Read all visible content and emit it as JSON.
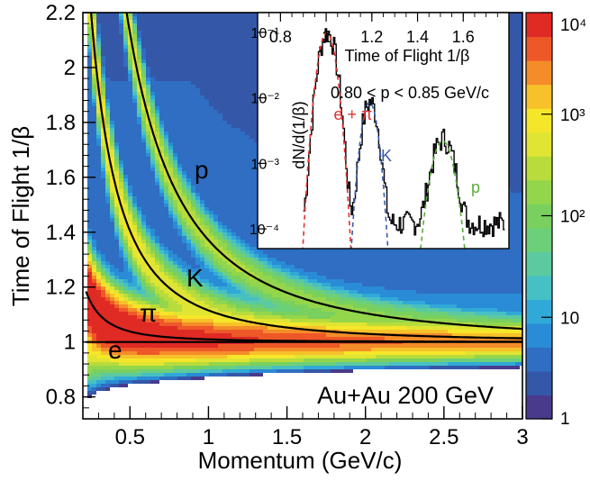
{
  "chart_data": [
    {
      "type": "heatmap",
      "title": "Au+Au 200 GeV",
      "xlabel": "Momentum (GeV/c)",
      "ylabel": "Time of Flight 1/β",
      "xlim": [
        0.2,
        3.0
      ],
      "ylim": [
        0.72,
        2.2
      ],
      "x_ticks": [
        "0.5",
        "1",
        "1.5",
        "2",
        "2.5",
        "3"
      ],
      "y_ticks": [
        "0.8",
        "1",
        "1.2",
        "1.4",
        "1.6",
        "1.8",
        "2",
        "2.2"
      ],
      "colorbar": {
        "scale": "log",
        "range": [
          1,
          10000
        ],
        "tick_labels": [
          "1",
          "10",
          "10²",
          "10³",
          "10⁴"
        ],
        "colors": [
          "#4a3a8c",
          "#3557a8",
          "#2f6ec2",
          "#2a8bd6",
          "#31a9d8",
          "#47c0c4",
          "#5cc9a0",
          "#6ccf7a",
          "#79d05e",
          "#93d64c",
          "#b8dc3c",
          "#e0e432",
          "#f5e62a",
          "#f7c12a",
          "#f48c2a",
          "#ee5828",
          "#e02a24"
        ]
      },
      "band_labels": [
        "e",
        "π",
        "K",
        "p"
      ],
      "curves": [
        {
          "label": "π",
          "mass": 0.1396
        },
        {
          "label": "K",
          "mass": 0.4937
        },
        {
          "label": "p",
          "mass": 0.9383
        },
        {
          "label": "e",
          "mass": 0.000511
        }
      ],
      "grid": false
    },
    {
      "type": "line",
      "title": "0.80 < p < 0.85 GeV/c",
      "xlabel": "Time of Flight 1/β",
      "ylabel": "dN/d(1/β)",
      "xlim": [
        0.7,
        1.8
      ],
      "x_ticks": [
        "0.8",
        "1",
        "1.2",
        "1.4",
        "1.6"
      ],
      "y_scale": "log",
      "ylim": [
        5e-05,
        0.2
      ],
      "y_ticks": [
        "10⁻⁴",
        "10⁻³",
        "10⁻²",
        "10⁻¹"
      ],
      "peaks": [
        {
          "label": "e + π",
          "color": "#e0312f",
          "mean": 1.003,
          "sigma": 0.027,
          "amplitude": 0.1
        },
        {
          "label": "K",
          "color": "#3a5bb0",
          "mean": 1.19,
          "sigma": 0.025,
          "amplitude": 0.0085
        },
        {
          "label": "p",
          "color": "#5aae3a",
          "mean": 1.51,
          "sigma": 0.035,
          "amplitude": 0.0022
        }
      ]
    }
  ]
}
